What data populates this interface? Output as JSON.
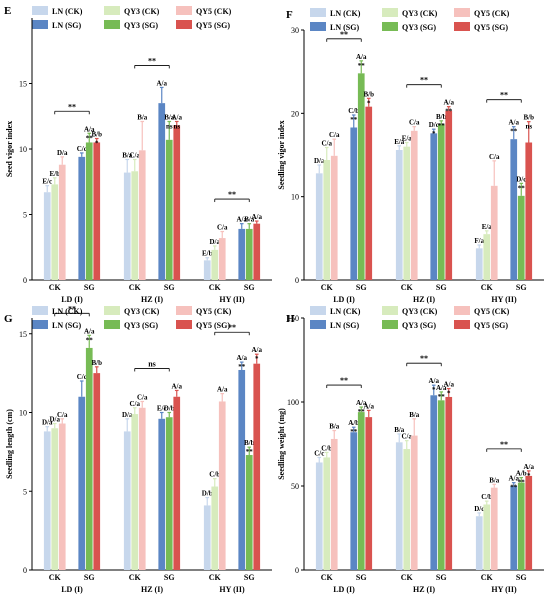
{
  "legend_labels": [
    "LN (CK)",
    "QY3 (CK)",
    "QY5 (CK)",
    "LN (SG)",
    "QY3 (SG)",
    "QY5 (SG)"
  ],
  "colors": {
    "LN_CK": "#c7d7ec",
    "QY3_CK": "#d7ebbd",
    "QY5_CK": "#f6c1bd",
    "LN_SG": "#5b86c4",
    "QY3_SG": "#77bb55",
    "QY5_SG": "#d9534f"
  },
  "chart_data": [
    {
      "panel": "E",
      "type": "bar",
      "ylabel": "Seed vigor index",
      "ylim": [
        0,
        20
      ],
      "yticks": [
        0,
        5,
        10,
        15
      ],
      "treatments": [
        "CK",
        "SG"
      ],
      "groups": [
        {
          "name": "LD (I)",
          "series": {
            "CK": {
              "values": [
                6.7,
                7.3,
                8.8
              ],
              "errors": [
                0.5,
                0.5,
                0.6
              ],
              "letters": [
                "E/c",
                "E/b",
                "D/a"
              ],
              "marks": [
                "",
                "",
                ""
              ]
            },
            "SG": {
              "values": [
                9.4,
                10.5,
                10.5
              ],
              "errors": [
                0.3,
                0.7,
                0.3
              ],
              "letters": [
                "C/c",
                "A/a",
                "B/b"
              ],
              "marks": [
                "",
                "**",
                "*"
              ]
            }
          },
          "comparison": "**"
        },
        {
          "name": "HZ (I)",
          "series": {
            "CK": {
              "values": [
                8.2,
                8.3,
                9.9
              ],
              "errors": [
                1.0,
                0.9,
                2.2
              ],
              "letters": [
                "B/a",
                "C/a",
                "B/a"
              ],
              "marks": [
                "",
                "",
                ""
              ]
            },
            "SG": {
              "values": [
                13.5,
                10.7,
                11.8
              ],
              "errors": [
                1.2,
                1.4,
                0.3
              ],
              "letters": [
                "A/a",
                "B/a",
                "A/a"
              ],
              "marks": [
                "",
                "ns",
                "ns"
              ]
            }
          },
          "comparison": "**"
        },
        {
          "name": "HY (II)",
          "series": {
            "CK": {
              "values": [
                1.5,
                2.3,
                3.2
              ],
              "errors": [
                0.2,
                0.3,
                0.5
              ],
              "letters": [
                "E/b",
                "D/a",
                "C/a"
              ],
              "marks": [
                "",
                "",
                ""
              ]
            },
            "SG": {
              "values": [
                3.9,
                3.9,
                4.3
              ],
              "errors": [
                0.4,
                0.4,
                0.2
              ],
              "letters": [
                "A/a",
                "B/a",
                "A/a"
              ],
              "marks": [
                "",
                "",
                ""
              ]
            }
          },
          "comparison": "**"
        }
      ]
    },
    {
      "panel": "F",
      "type": "bar",
      "ylabel": "Seedling vigor index",
      "ylim": [
        0,
        30
      ],
      "yticks": [
        0,
        10,
        20,
        30
      ],
      "treatments": [
        "CK",
        "SG"
      ],
      "groups": [
        {
          "name": "LD (I)",
          "series": {
            "CK": {
              "values": [
                12.8,
                14.4,
                14.9
              ],
              "errors": [
                1.0,
                1.5,
                2.0
              ],
              "letters": [
                "D/a",
                "C/a",
                "C/a"
              ],
              "marks": [
                "",
                "",
                ""
              ]
            },
            "SG": {
              "values": [
                18.3,
                24.8,
                20.8
              ],
              "errors": [
                1.5,
                1.5,
                1.0
              ],
              "letters": [
                "C/b",
                "A/a",
                "B/b"
              ],
              "marks": [
                "**",
                "**",
                "*"
              ]
            }
          },
          "comparison": "**"
        },
        {
          "name": "HZ (I)",
          "series": {
            "CK": {
              "values": [
                15.6,
                16.0,
                17.9
              ],
              "errors": [
                0.5,
                0.5,
                0.5
              ],
              "letters": [
                "E/a",
                "E/a",
                "C/a"
              ],
              "marks": [
                "",
                "",
                ""
              ]
            },
            "SG": {
              "values": [
                17.6,
                18.7,
                20.3
              ],
              "errors": [
                0.5,
                0.4,
                0.5
              ],
              "letters": [
                "D/c",
                "B/b",
                "A/a"
              ],
              "marks": [
                "*",
                "**",
                "**"
              ]
            }
          },
          "comparison": "**"
        },
        {
          "name": "HY (II)",
          "series": {
            "CK": {
              "values": [
                3.8,
                5.5,
                11.3
              ],
              "errors": [
                0.4,
                0.4,
                3.0
              ],
              "letters": [
                "F/a",
                "E/a",
                "C/a"
              ],
              "marks": [
                "",
                "",
                ""
              ]
            },
            "SG": {
              "values": [
                16.9,
                10.1,
                16.5
              ],
              "errors": [
                1.5,
                1.5,
                2.5
              ],
              "letters": [
                "A/a",
                "D/c",
                "B/b"
              ],
              "marks": [
                "**",
                "**",
                "ns"
              ]
            }
          },
          "comparison": "**"
        }
      ]
    },
    {
      "panel": "G",
      "type": "bar",
      "ylabel": "Seedling length (cm)",
      "ylim": [
        0,
        16
      ],
      "yticks": [
        0,
        5,
        10,
        15
      ],
      "treatments": [
        "CK",
        "SG"
      ],
      "groups": [
        {
          "name": "LD (I)",
          "series": {
            "CK": {
              "values": [
                8.8,
                9.0,
                9.3
              ],
              "errors": [
                0.3,
                0.3,
                0.3
              ],
              "letters": [
                "D/a",
                "D/a",
                "C/a"
              ],
              "marks": [
                "",
                "",
                ""
              ]
            },
            "SG": {
              "values": [
                11.0,
                14.1,
                12.5
              ],
              "errors": [
                1.0,
                0.8,
                0.4
              ],
              "letters": [
                "C/c",
                "A/a",
                "B/b"
              ],
              "marks": [
                "",
                "**",
                ""
              ]
            }
          },
          "comparison": "**"
        },
        {
          "name": "HZ (I)",
          "series": {
            "CK": {
              "values": [
                8.8,
                9.9,
                10.3
              ],
              "errors": [
                0.8,
                0.4,
                0.4
              ],
              "letters": [
                "D/a",
                "C/a",
                "C/a"
              ],
              "marks": [
                "",
                "",
                ""
              ]
            },
            "SG": {
              "values": [
                9.6,
                9.7,
                11.0
              ],
              "errors": [
                0.4,
                0.3,
                0.4
              ],
              "letters": [
                "E/c",
                "D/b",
                "A/a"
              ],
              "marks": [
                "",
                "",
                ""
              ]
            }
          },
          "comparison": "ns"
        },
        {
          "name": "HY (II)",
          "series": {
            "CK": {
              "values": [
                4.1,
                5.3,
                10.7
              ],
              "errors": [
                0.5,
                0.5,
                0.5
              ],
              "letters": [
                "D/b",
                "C/b",
                "A/a"
              ],
              "marks": [
                "",
                "",
                ""
              ]
            },
            "SG": {
              "values": [
                12.7,
                7.3,
                13.1
              ],
              "errors": [
                0.5,
                0.5,
                0.6
              ],
              "letters": [
                "A/a",
                "B/b",
                "A/a"
              ],
              "marks": [
                "**",
                "**",
                "*"
              ]
            }
          },
          "comparison": "**"
        }
      ]
    },
    {
      "panel": "H",
      "type": "bar",
      "ylabel": "Seedling weight (mg)",
      "ylim": [
        0,
        150
      ],
      "yticks": [
        0,
        50,
        100,
        150
      ],
      "treatments": [
        "CK",
        "SG"
      ],
      "groups": [
        {
          "name": "LD (I)",
          "series": {
            "CK": {
              "values": [
                64,
                67,
                78
              ],
              "errors": [
                3,
                3,
                5
              ],
              "letters": [
                "C/c",
                "C/b",
                "B/a"
              ],
              "marks": [
                "",
                "",
                ""
              ]
            },
            "SG": {
              "values": [
                82,
                94,
                91
              ],
              "errors": [
                3,
                3,
                4
              ],
              "letters": [
                "A/b",
                "A/a",
                "A/a"
              ],
              "marks": [
                "**",
                "**",
                ""
              ]
            }
          },
          "comparison": "**"
        },
        {
          "name": "HZ (I)",
          "series": {
            "CK": {
              "values": [
                76,
                72,
                80
              ],
              "errors": [
                5,
                5,
                10
              ],
              "letters": [
                "B/a",
                "C/a",
                "B/a"
              ],
              "marks": [
                "",
                "",
                ""
              ]
            },
            "SG": {
              "values": [
                104,
                101,
                103
              ],
              "errors": [
                6,
                5,
                5
              ],
              "letters": [
                "A/a",
                "A/a",
                "A/a"
              ],
              "marks": [
                "*",
                "**",
                "*"
              ]
            }
          },
          "comparison": "**"
        },
        {
          "name": "HY (II)",
          "series": {
            "CK": {
              "values": [
                32,
                39,
                49
              ],
              "errors": [
                2,
                2,
                2
              ],
              "letters": [
                "D/c",
                "C/b",
                "B/a"
              ],
              "marks": [
                "",
                "",
                ""
              ]
            },
            "SG": {
              "values": [
                50,
                52,
                56
              ],
              "errors": [
                2,
                3,
                3
              ],
              "letters": [
                "A/a",
                "A/b",
                "A/a"
              ],
              "marks": [
                "**",
                "**",
                "*"
              ]
            }
          },
          "comparison": "**"
        }
      ]
    }
  ]
}
